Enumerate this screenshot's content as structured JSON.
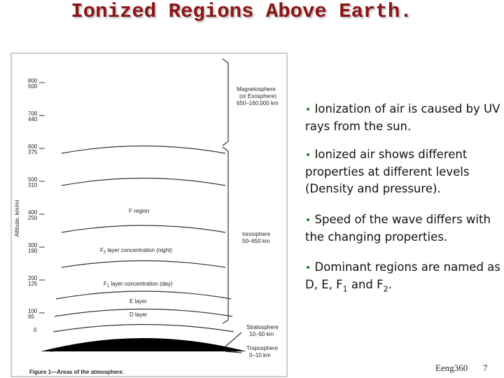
{
  "header": {
    "title": "Ionized Regions Above Earth."
  },
  "figure": {
    "axis_title": "Altitude, km/mi",
    "altitudes": [
      {
        "km": "800",
        "mi": "500"
      },
      {
        "km": "700",
        "mi": "440"
      },
      {
        "km": "600",
        "mi": "375"
      },
      {
        "km": "500",
        "mi": "310"
      },
      {
        "km": "400",
        "mi": "250"
      },
      {
        "km": "300",
        "mi": "190"
      },
      {
        "km": "200",
        "mi": "125"
      },
      {
        "km": "100",
        "mi": "65"
      },
      {
        "km": "0"
      }
    ],
    "right_labels": [
      {
        "name": "Magnetosphere",
        "note": "(or Exosphere)",
        "range": "650–160,000 km"
      },
      {
        "name": "Ionosphere",
        "range": "50–650 km"
      },
      {
        "name": "Stratosphere",
        "range": "10–50 km"
      },
      {
        "name": "Troposphere",
        "range": "0–10 km"
      }
    ],
    "region_labels": [
      {
        "text": "F region"
      },
      {
        "text": "F",
        "sub": "2",
        "rest": " layer concentration (night)"
      },
      {
        "text": "F",
        "sub": "1",
        "rest": " layer concentration (day)"
      },
      {
        "text": "E layer"
      },
      {
        "text": "D layer"
      }
    ],
    "caption": "Figure 1—Areas of the atmosphere."
  },
  "bullets": [
    {
      "text": "Ionization of air is caused by  UV rays from the sun."
    },
    {
      "text": "Ionized air shows different properties at different levels (Density and pressure)."
    },
    {
      "text": "Speed of the wave  differs with the changing properties."
    },
    {
      "parts": [
        "Dominant regions are named as D, E, F",
        "1",
        " and F",
        "2",
        "."
      ]
    }
  ],
  "footer": {
    "course": "Eeng360",
    "page": "7"
  }
}
